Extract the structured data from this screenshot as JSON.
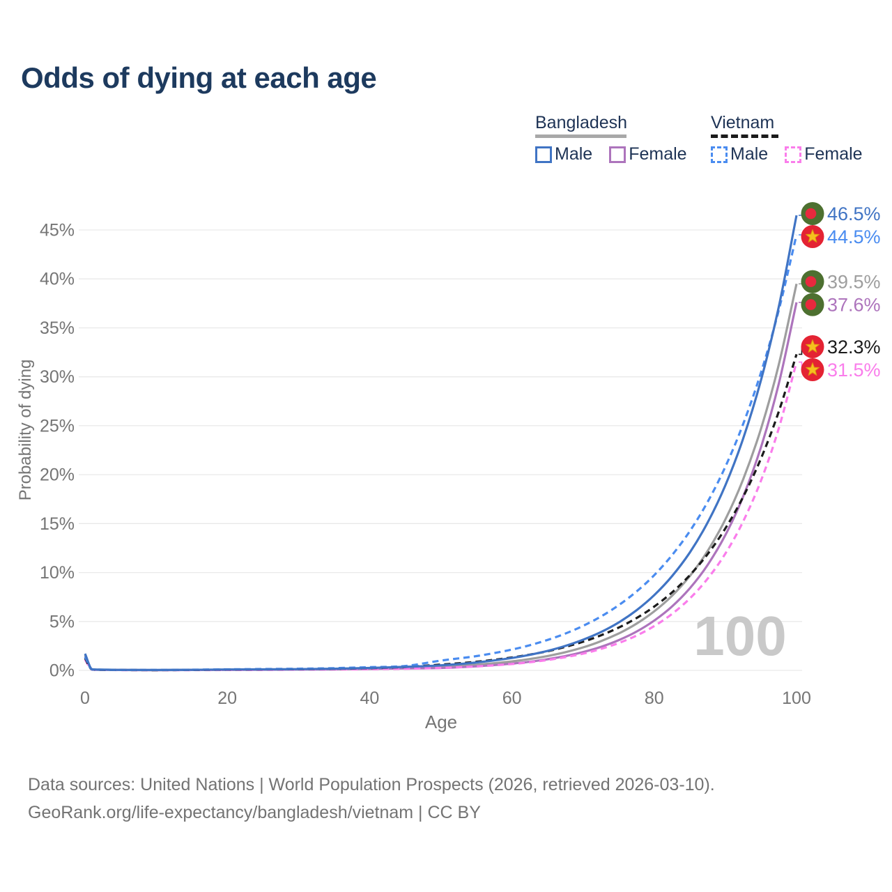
{
  "title": "Odds of dying at each age",
  "legend": {
    "groups": [
      {
        "name": "Bangladesh",
        "line_style": "solid",
        "line_color": "#a8a8a8",
        "items": [
          {
            "label": "Male",
            "color": "#4074c4",
            "dashed": false
          },
          {
            "label": "Female",
            "color": "#ad74bc",
            "dashed": false
          }
        ]
      },
      {
        "name": "Vietnam",
        "line_style": "dashed",
        "line_color": "#1b1b1b",
        "items": [
          {
            "label": "Male",
            "color": "#4a8cf0",
            "dashed": true
          },
          {
            "label": "Female",
            "color": "#fa7deb",
            "dashed": true
          }
        ]
      }
    ]
  },
  "watermark": "100",
  "footer": {
    "line1": "Data sources: United Nations | World Population Prospects (2026, retrieved 2026-03-10).",
    "line2": "GeoRank.org/life-expectancy/bangladesh/vietnam | CC BY"
  },
  "chart_data": {
    "type": "line",
    "title": "Odds of dying at each age",
    "xlabel": "Age",
    "ylabel": "Probability of dying",
    "x_range": [
      0,
      100
    ],
    "y_range_percent": [
      0,
      47
    ],
    "xticks": [
      0,
      20,
      40,
      60,
      80,
      100
    ],
    "yticks_percent": [
      0,
      5,
      10,
      15,
      20,
      25,
      30,
      35,
      40,
      45
    ],
    "grid": "horizontal",
    "ages": [
      0,
      1,
      2,
      5,
      10,
      15,
      20,
      25,
      30,
      35,
      40,
      45,
      50,
      55,
      60,
      62.5,
      65,
      67.5,
      70,
      72.5,
      75,
      77.5,
      80,
      82.5,
      85,
      87.5,
      90,
      92.5,
      95,
      97.5,
      100
    ],
    "series": [
      {
        "id": "bd-all",
        "country": "Bangladesh",
        "sex": "Both sexes",
        "label": "Bangladesh",
        "color": "#9e9e9e",
        "dashed": false,
        "flag": "bangladesh",
        "end_label": "39.5%",
        "values_percent": [
          1.55,
          0.11,
          0.07,
          0.04,
          0.03,
          0.05,
          0.07,
          0.09,
          0.11,
          0.14,
          0.2,
          0.28,
          0.36,
          0.58,
          0.92,
          1.16,
          1.47,
          1.86,
          2.35,
          2.98,
          3.77,
          4.77,
          6.03,
          7.62,
          9.64,
          12.2,
          15.43,
          19.52,
          24.69,
          31.23,
          39.5
        ]
      },
      {
        "id": "bd-female",
        "country": "Bangladesh",
        "sex": "Female",
        "label": "Bangladesh Female",
        "color": "#ad74bc",
        "dashed": false,
        "flag": "bangladesh",
        "end_label": "37.6%",
        "values_percent": [
          1.4,
          0.1,
          0.06,
          0.04,
          0.03,
          0.04,
          0.05,
          0.07,
          0.09,
          0.11,
          0.15,
          0.2,
          0.25,
          0.42,
          0.69,
          0.88,
          1.14,
          1.46,
          1.87,
          2.4,
          3.09,
          3.96,
          5.09,
          6.53,
          8.39,
          10.77,
          13.83,
          17.76,
          22.81,
          29.28,
          37.6
        ]
      },
      {
        "id": "vn-female",
        "country": "Vietnam",
        "sex": "Female",
        "label": "Vietnam Female",
        "color": "#fa7deb",
        "dashed": true,
        "flag": "vietnam",
        "end_label": "31.5%",
        "values_percent": [
          1.1,
          0.08,
          0.05,
          0.03,
          0.02,
          0.03,
          0.04,
          0.05,
          0.07,
          0.09,
          0.12,
          0.17,
          0.25,
          0.4,
          0.65,
          0.83,
          1.06,
          1.35,
          1.71,
          2.19,
          2.79,
          3.55,
          4.53,
          5.77,
          7.35,
          9.37,
          11.94,
          15.22,
          19.39,
          24.72,
          31.5
        ]
      },
      {
        "id": "vn-all",
        "country": "Vietnam",
        "sex": "Both sexes",
        "label": "Vietnam",
        "color": "#1b1b1b",
        "dashed": true,
        "flag": "vietnam",
        "end_label": "32.3%",
        "values_percent": [
          1.25,
          0.09,
          0.06,
          0.04,
          0.03,
          0.05,
          0.08,
          0.1,
          0.12,
          0.16,
          0.23,
          0.35,
          0.59,
          0.88,
          1.32,
          1.61,
          1.96,
          2.4,
          2.93,
          3.58,
          4.37,
          5.34,
          6.52,
          7.96,
          9.73,
          11.88,
          14.51,
          17.73,
          21.65,
          26.44,
          32.3
        ]
      },
      {
        "id": "vn-male",
        "country": "Vietnam",
        "sex": "Male",
        "label": "Vietnam Male",
        "color": "#4a8cf0",
        "dashed": true,
        "flag": "vietnam",
        "end_label": "44.5%",
        "values_percent": [
          1.4,
          0.1,
          0.07,
          0.05,
          0.04,
          0.07,
          0.11,
          0.14,
          0.17,
          0.23,
          0.33,
          0.45,
          1.0,
          1.46,
          2.13,
          2.57,
          3.11,
          3.76,
          4.55,
          5.5,
          6.66,
          8.05,
          9.73,
          11.77,
          14.23,
          17.21,
          20.81,
          25.17,
          30.43,
          36.8,
          44.5
        ]
      },
      {
        "id": "bd-male",
        "country": "Bangladesh",
        "sex": "Male",
        "label": "Bangladesh Male",
        "color": "#4074c4",
        "dashed": false,
        "flag": "bangladesh",
        "end_label": "46.5%",
        "values_percent": [
          1.7,
          0.12,
          0.08,
          0.05,
          0.04,
          0.06,
          0.09,
          0.11,
          0.13,
          0.17,
          0.25,
          0.36,
          0.52,
          0.81,
          1.27,
          1.59,
          1.99,
          2.5,
          3.13,
          3.91,
          4.9,
          6.14,
          7.69,
          9.63,
          12.05,
          15.1,
          18.91,
          23.68,
          29.65,
          37.13,
          46.5
        ]
      }
    ],
    "end_labels": [
      "46.5%",
      "44.5%",
      "39.5%",
      "37.6%",
      "32.3%",
      "31.5%"
    ],
    "flag_colors": {
      "bangladesh": {
        "disc": "#4d7030",
        "circle": "#e8293e"
      },
      "vietnam": {
        "disc": "#e42333",
        "star": "#f5c11e",
        "star_edge": "#e09112"
      }
    },
    "legend_position": "top-right"
  }
}
